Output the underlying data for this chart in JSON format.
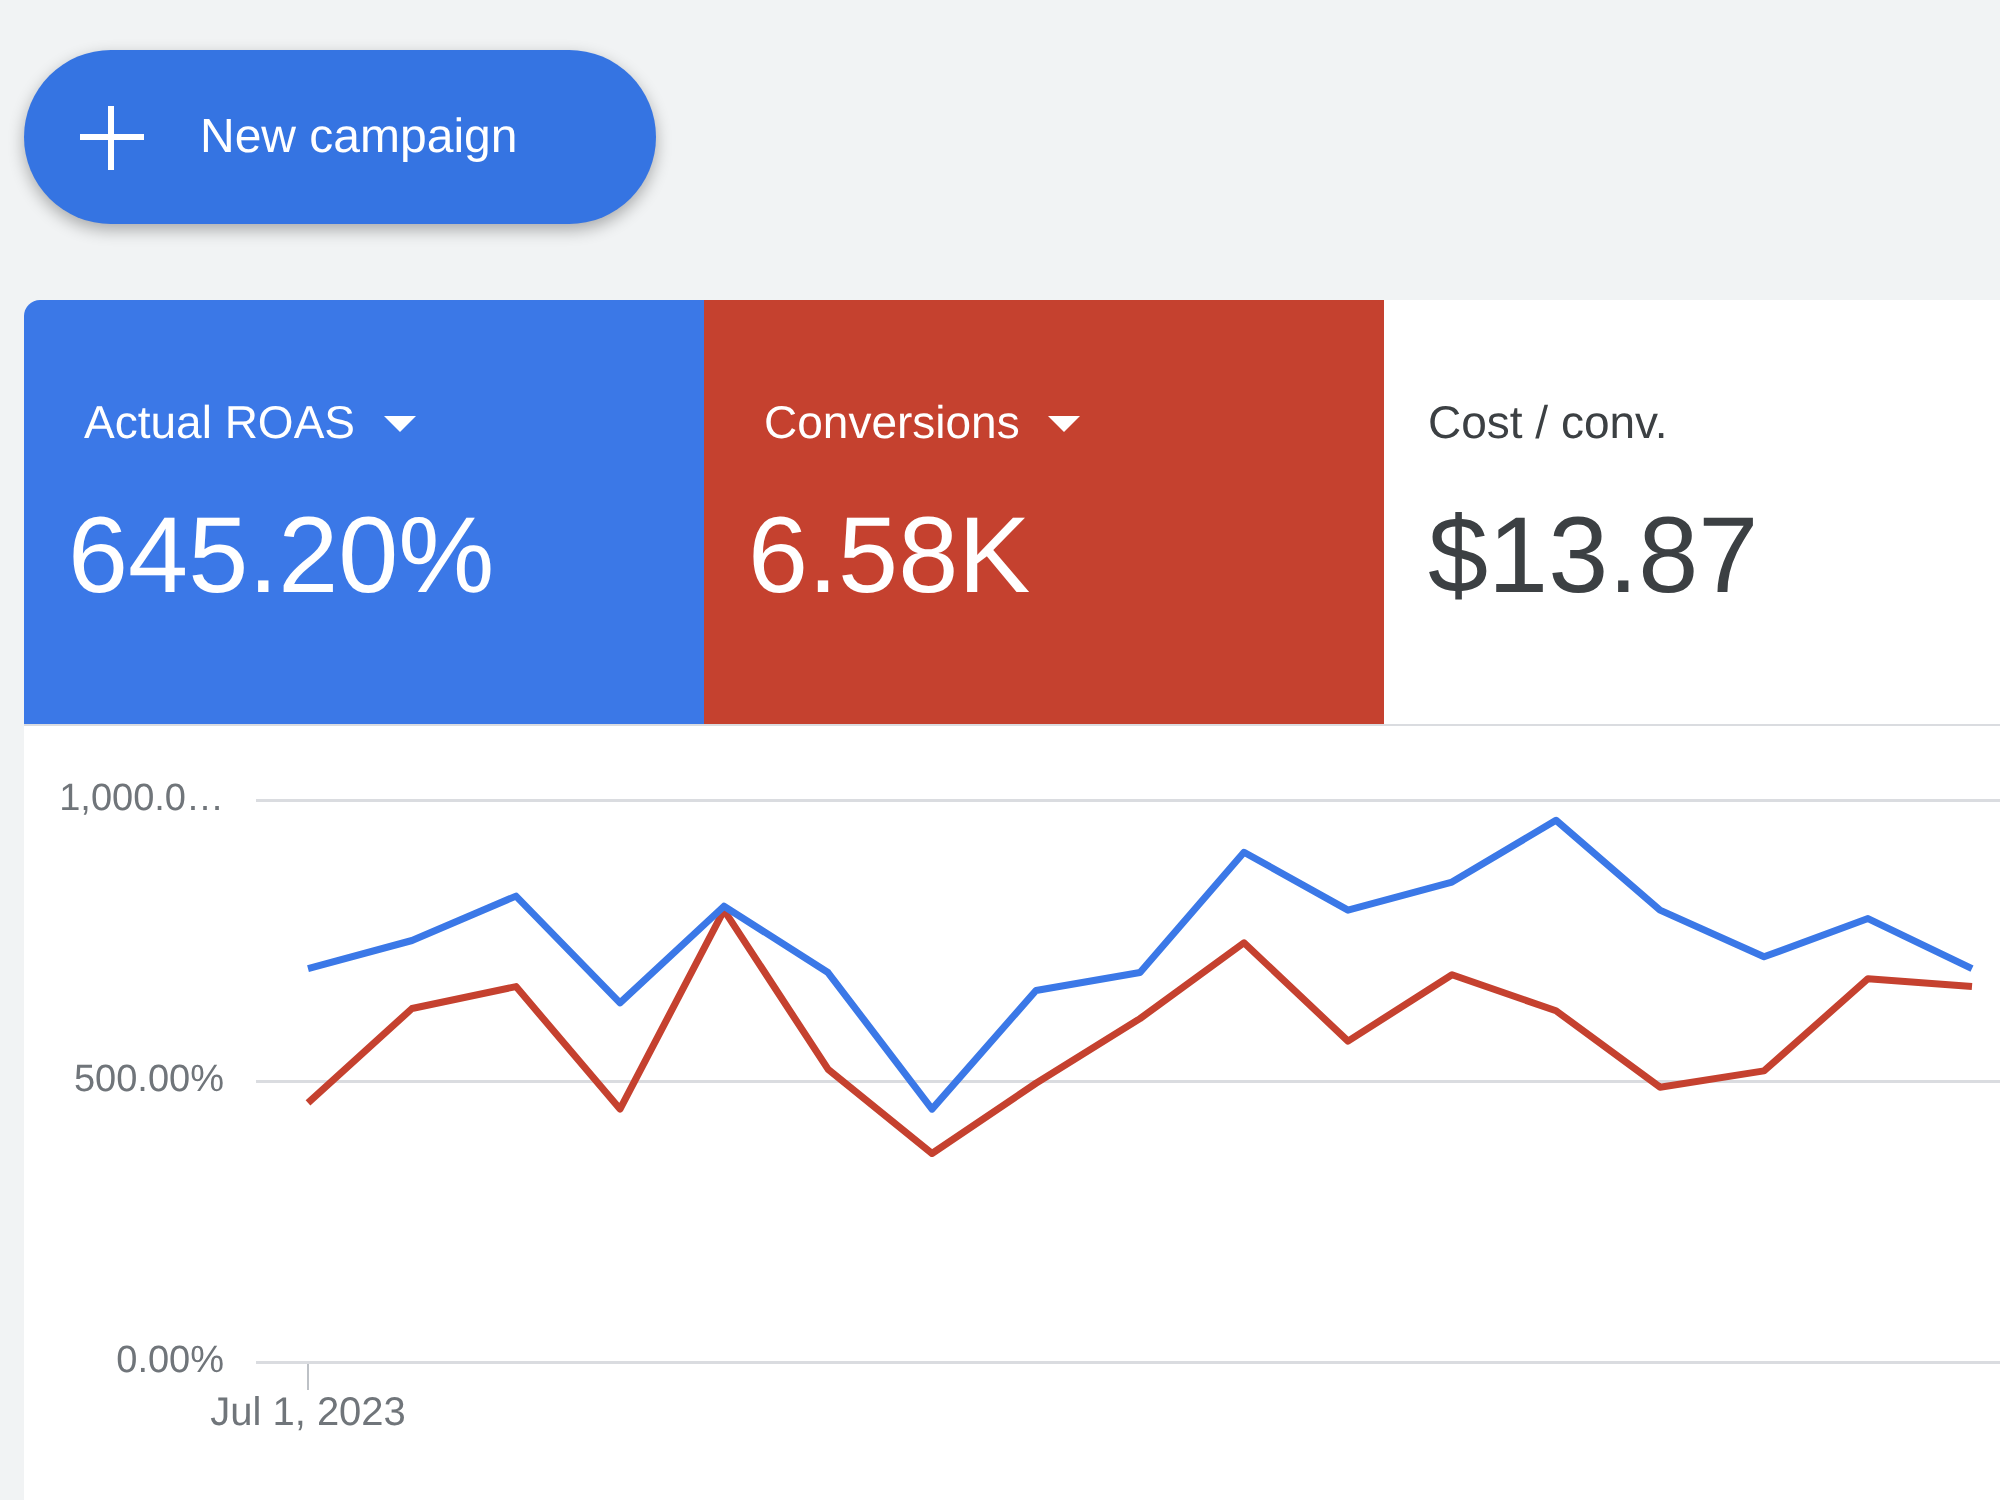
{
  "chart_data": {
    "type": "line",
    "categories": [
      "Jul 1, 2023",
      null,
      null,
      null,
      null,
      null,
      null,
      null,
      null,
      null,
      null,
      null,
      null,
      null,
      null,
      null,
      null
    ],
    "series": [
      {
        "name": "Actual ROAS",
        "color": "#3b78e7",
        "values": [
          700,
          750,
          829,
          639,
          811,
          693,
          450,
          661,
          693,
          907,
          804,
          854,
          964,
          804,
          721,
          789,
          700
        ]
      },
      {
        "name": "Conversions",
        "color": "#c5412f",
        "values": [
          461,
          629,
          668,
          450,
          804,
          521,
          371,
          496,
          611,
          746,
          571,
          689,
          625,
          489,
          518,
          682,
          668
        ]
      }
    ],
    "ylim": [
      0,
      1000
    ],
    "yticks": [
      {
        "value": 0,
        "label": "0.00%"
      },
      {
        "value": 500,
        "label": "500.00%"
      },
      {
        "value": 1000,
        "label": "1,000.0…"
      }
    ],
    "grid": "y",
    "marker": "none",
    "line_style": "solid",
    "annotations": [
      "645.20%",
      "6.58K",
      "Cost / conv.",
      "$13.87",
      "New campaign"
    ]
  }
}
